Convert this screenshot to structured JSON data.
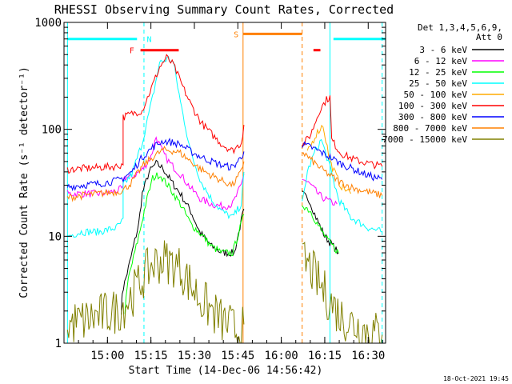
{
  "chart_data": {
    "type": "line",
    "title": "RHESSI Observing Summary Count Rates, Corrected",
    "xlabel": "Start Time (14-Dec-06 14:56:42)",
    "ylabel": "Corrected Count Rate (s⁻¹ detector⁻¹)",
    "footer": "18-Oct-2021 19:45",
    "scale": "log",
    "ylim": [
      1,
      1000
    ],
    "xlim_minutes": [
      14.75,
      16.6
    ],
    "x_ticks": [
      {
        "v": 15.0,
        "label": "15:00"
      },
      {
        "v": 15.25,
        "label": "15:15"
      },
      {
        "v": 15.5,
        "label": "15:30"
      },
      {
        "v": 15.75,
        "label": "15:45"
      },
      {
        "v": 16.0,
        "label": "16:00"
      },
      {
        "v": 16.25,
        "label": "16:15"
      },
      {
        "v": 16.5,
        "label": "16:30"
      }
    ],
    "y_ticks": [
      {
        "v": 1,
        "label": "1"
      },
      {
        "v": 10,
        "label": "10"
      },
      {
        "v": 100,
        "label": "100"
      },
      {
        "v": 1000,
        "label": "1000"
      }
    ],
    "legend_title": [
      "Det 1,3,4,5,6,9,",
      "Att 0"
    ],
    "legend_position": "right",
    "flags": [
      {
        "label": "N",
        "color": "#00ffff",
        "x_start": 14.77,
        "x_end": 15.17,
        "y": 700,
        "label_x": 15.24
      },
      {
        "label": "N",
        "color": "#00ffff",
        "x_start": 16.3,
        "x_end": 16.6,
        "y": 700
      },
      {
        "label": "F",
        "color": "#ff0000",
        "x_start": 15.19,
        "x_end": 15.41,
        "y": 550,
        "label_x": 15.14
      },
      {
        "label": "F",
        "color": "#ff0000",
        "x_start": 16.185,
        "x_end": 16.225,
        "y": 550
      },
      {
        "label": "S",
        "color": "#ff8000",
        "x_start": 15.78,
        "x_end": 16.12,
        "y": 780,
        "label_x": 15.74
      }
    ],
    "markers": [
      {
        "x": 14.77,
        "color": "#00ffff",
        "style": "solid"
      },
      {
        "x": 15.21,
        "color": "#00ffff",
        "style": "dashed"
      },
      {
        "x": 15.78,
        "color": "#ff8000",
        "style": "solid"
      },
      {
        "x": 16.12,
        "color": "#ff8000",
        "style": "dashed"
      },
      {
        "x": 16.28,
        "color": "#00ffff",
        "style": "solid"
      },
      {
        "x": 16.58,
        "color": "#00ffff",
        "style": "dashed"
      }
    ],
    "gaps": [
      [
        15.795,
        16.115
      ]
    ],
    "series": [
      {
        "name": "3 - 6 keV",
        "color": "#000000",
        "points": [
          [
            15.08,
            2
          ],
          [
            15.085,
            3
          ],
          [
            15.12,
            5
          ],
          [
            15.18,
            13
          ],
          [
            15.2,
            25
          ],
          [
            15.24,
            40
          ],
          [
            15.28,
            48
          ],
          [
            15.32,
            43
          ],
          [
            15.37,
            32
          ],
          [
            15.42,
            25
          ],
          [
            15.48,
            17
          ],
          [
            15.53,
            11
          ],
          [
            15.6,
            8
          ],
          [
            15.66,
            7
          ],
          [
            15.73,
            7
          ],
          [
            15.77,
            14
          ],
          [
            15.785,
            18
          ],
          [
            16.12,
            25
          ],
          [
            16.16,
            22
          ],
          [
            16.2,
            15
          ],
          [
            16.25,
            10
          ],
          [
            16.3,
            8
          ],
          [
            16.33,
            7
          ]
        ]
      },
      {
        "name": "6 - 12 keV",
        "color": "#ff00ff",
        "points": [
          [
            14.77,
            25
          ],
          [
            14.85,
            25
          ],
          [
            14.95,
            25
          ],
          [
            15.03,
            26
          ],
          [
            15.09,
            28
          ],
          [
            15.09,
            35
          ],
          [
            15.14,
            36
          ],
          [
            15.2,
            42
          ],
          [
            15.25,
            55
          ],
          [
            15.28,
            85
          ],
          [
            15.32,
            60
          ],
          [
            15.36,
            48
          ],
          [
            15.42,
            38
          ],
          [
            15.48,
            28
          ],
          [
            15.54,
            22
          ],
          [
            15.6,
            20
          ],
          [
            15.66,
            19
          ],
          [
            15.72,
            20
          ],
          [
            15.77,
            30
          ],
          [
            15.785,
            38
          ],
          [
            16.12,
            35
          ],
          [
            16.17,
            30
          ],
          [
            16.22,
            24
          ],
          [
            16.28,
            21
          ],
          [
            16.32,
            20
          ]
        ]
      },
      {
        "name": "12 - 25 keV",
        "color": "#00ff00",
        "points": [
          [
            15.1,
            2
          ],
          [
            15.12,
            4
          ],
          [
            15.18,
            10
          ],
          [
            15.22,
            20
          ],
          [
            15.26,
            35
          ],
          [
            15.3,
            38
          ],
          [
            15.36,
            28
          ],
          [
            15.42,
            20
          ],
          [
            15.48,
            13
          ],
          [
            15.55,
            10
          ],
          [
            15.6,
            8
          ],
          [
            15.66,
            7
          ],
          [
            15.72,
            7
          ],
          [
            15.77,
            13
          ],
          [
            15.785,
            16
          ],
          [
            16.12,
            20
          ],
          [
            16.17,
            17
          ],
          [
            16.22,
            12
          ],
          [
            16.27,
            9
          ],
          [
            16.3,
            8
          ],
          [
            16.33,
            7
          ]
        ]
      },
      {
        "name": "25 - 50 keV",
        "color": "#00ffff",
        "points": [
          [
            14.77,
            10
          ],
          [
            14.85,
            11
          ],
          [
            14.95,
            11
          ],
          [
            15.05,
            12
          ],
          [
            15.09,
            14
          ],
          [
            15.09,
            30
          ],
          [
            15.14,
            38
          ],
          [
            15.2,
            75
          ],
          [
            15.26,
            200
          ],
          [
            15.3,
            420
          ],
          [
            15.35,
            460
          ],
          [
            15.38,
            420
          ],
          [
            15.42,
            180
          ],
          [
            15.48,
            60
          ],
          [
            15.54,
            32
          ],
          [
            15.6,
            22
          ],
          [
            15.66,
            17
          ],
          [
            15.72,
            15
          ],
          [
            15.77,
            20
          ],
          [
            15.785,
            40
          ],
          [
            16.12,
            20
          ],
          [
            16.15,
            40
          ],
          [
            16.19,
            60
          ],
          [
            16.23,
            80
          ],
          [
            16.27,
            50
          ],
          [
            16.33,
            22
          ],
          [
            16.4,
            15
          ],
          [
            16.5,
            12
          ],
          [
            16.58,
            11
          ]
        ]
      },
      {
        "name": "50 - 100 keV",
        "color": "#ffaa00",
        "points": [
          [
            16.15,
            60
          ],
          [
            16.2,
            90
          ],
          [
            16.24,
            110
          ],
          [
            16.28,
            50
          ],
          [
            16.34,
            30
          ],
          [
            16.4,
            25
          ]
        ]
      },
      {
        "name": "100 - 300 keV",
        "color": "#ff0000",
        "points": [
          [
            14.77,
            42
          ],
          [
            14.85,
            43
          ],
          [
            14.95,
            44
          ],
          [
            15.05,
            45
          ],
          [
            15.09,
            47
          ],
          [
            15.09,
            130
          ],
          [
            15.14,
            140
          ],
          [
            15.2,
            150
          ],
          [
            15.26,
            260
          ],
          [
            15.3,
            380
          ],
          [
            15.34,
            470
          ],
          [
            15.38,
            400
          ],
          [
            15.42,
            280
          ],
          [
            15.48,
            170
          ],
          [
            15.54,
            115
          ],
          [
            15.6,
            90
          ],
          [
            15.66,
            72
          ],
          [
            15.72,
            63
          ],
          [
            15.77,
            75
          ],
          [
            15.785,
            110
          ],
          [
            16.12,
            70
          ],
          [
            16.17,
            90
          ],
          [
            16.22,
            150
          ],
          [
            16.26,
            190
          ],
          [
            16.28,
            200
          ],
          [
            16.29,
            80
          ],
          [
            16.34,
            60
          ],
          [
            16.42,
            52
          ],
          [
            16.5,
            48
          ],
          [
            16.58,
            45
          ]
        ]
      },
      {
        "name": "300 - 800 keV",
        "color": "#0000ff",
        "points": [
          [
            14.77,
            29
          ],
          [
            14.85,
            30
          ],
          [
            14.95,
            31
          ],
          [
            15.05,
            33
          ],
          [
            15.09,
            35
          ],
          [
            15.14,
            40
          ],
          [
            15.2,
            55
          ],
          [
            15.26,
            68
          ],
          [
            15.32,
            78
          ],
          [
            15.38,
            75
          ],
          [
            15.42,
            72
          ],
          [
            15.48,
            62
          ],
          [
            15.54,
            55
          ],
          [
            15.6,
            50
          ],
          [
            15.66,
            46
          ],
          [
            15.72,
            44
          ],
          [
            15.77,
            55
          ],
          [
            15.785,
            62
          ],
          [
            16.12,
            72
          ],
          [
            16.17,
            68
          ],
          [
            16.22,
            62
          ],
          [
            16.28,
            55
          ],
          [
            16.34,
            48
          ],
          [
            16.42,
            42
          ],
          [
            16.5,
            37
          ],
          [
            16.58,
            34
          ]
        ]
      },
      {
        "name": "800 - 7000 keV",
        "color": "#ff8000",
        "points": [
          [
            14.77,
            23
          ],
          [
            14.85,
            24
          ],
          [
            14.95,
            25
          ],
          [
            15.05,
            26
          ],
          [
            15.09,
            27
          ],
          [
            15.14,
            32
          ],
          [
            15.2,
            45
          ],
          [
            15.26,
            55
          ],
          [
            15.32,
            64
          ],
          [
            15.38,
            63
          ],
          [
            15.42,
            60
          ],
          [
            15.48,
            50
          ],
          [
            15.54,
            42
          ],
          [
            15.6,
            37
          ],
          [
            15.66,
            33
          ],
          [
            15.72,
            30
          ],
          [
            15.77,
            40
          ],
          [
            15.785,
            50
          ],
          [
            16.12,
            62
          ],
          [
            16.17,
            52
          ],
          [
            16.22,
            44
          ],
          [
            16.28,
            37
          ],
          [
            16.34,
            32
          ],
          [
            16.42,
            28
          ],
          [
            16.5,
            26
          ],
          [
            16.58,
            24
          ]
        ]
      },
      {
        "name": "7000 - 15000 keV",
        "color": "#808000",
        "points": [
          [
            14.77,
            1.5
          ],
          [
            14.85,
            1.6
          ],
          [
            14.95,
            1.8
          ],
          [
            15.05,
            2
          ],
          [
            15.09,
            2.2
          ],
          [
            15.14,
            2.8
          ],
          [
            15.2,
            4
          ],
          [
            15.26,
            5.5
          ],
          [
            15.32,
            6
          ],
          [
            15.38,
            5.5
          ],
          [
            15.42,
            5
          ],
          [
            15.48,
            3.5
          ],
          [
            15.54,
            2.5
          ],
          [
            15.6,
            2
          ],
          [
            15.66,
            1.6
          ],
          [
            15.72,
            1.4
          ],
          [
            15.77,
            1.2
          ],
          [
            15.785,
            1.5
          ],
          [
            16.12,
            6
          ],
          [
            16.17,
            5
          ],
          [
            16.22,
            3.5
          ],
          [
            16.28,
            2.5
          ],
          [
            16.34,
            1.8
          ],
          [
            16.42,
            1.5
          ],
          [
            16.5,
            1.3
          ],
          [
            16.58,
            1.2
          ]
        ]
      }
    ]
  }
}
